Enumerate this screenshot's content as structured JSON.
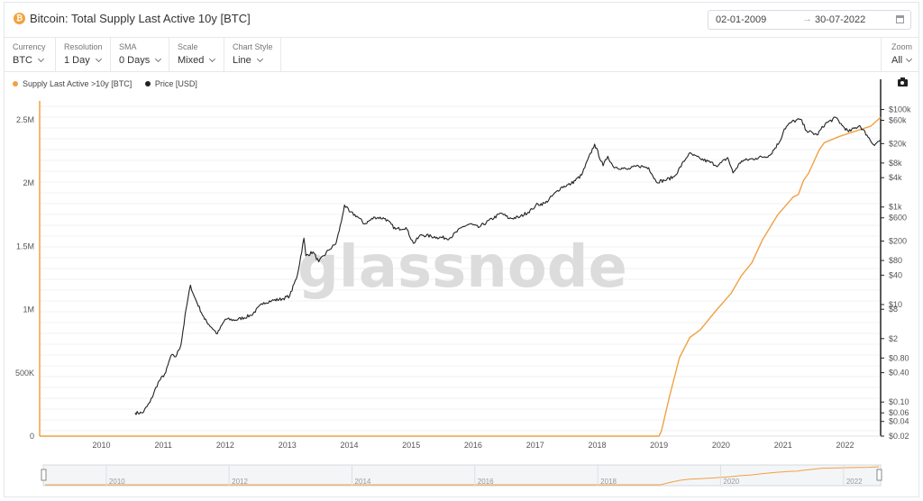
{
  "header": {
    "title": "Bitcoin: Total Supply Last Active 10y [BTC]",
    "date_from": "02-01-2009",
    "date_to": "30-07-2022"
  },
  "controls": [
    {
      "label": "Currency",
      "value": "BTC"
    },
    {
      "label": "Resolution",
      "value": "1 Day"
    },
    {
      "label": "SMA",
      "value": "0 Days"
    },
    {
      "label": "Scale",
      "value": "Mixed"
    },
    {
      "label": "Chart Style",
      "value": "Line"
    }
  ],
  "zoom": {
    "label": "Zoom",
    "value": "All"
  },
  "icons": {
    "coin": "bitcoin-icon",
    "calendar": "calendar-icon",
    "camera": "camera-icon"
  },
  "watermark": "glassnode",
  "colors": {
    "supply": "#f0a143",
    "price": "#222222"
  },
  "chart_data": {
    "type": "line",
    "x_range": [
      "2009-01-02",
      "2022-07-30"
    ],
    "x_ticks": [
      "2010",
      "2011",
      "2012",
      "2013",
      "2014",
      "2015",
      "2016",
      "2017",
      "2018",
      "2019",
      "2020",
      "2021",
      "2022"
    ],
    "y_left": {
      "range": [
        0,
        2650000
      ],
      "ticks": [
        0,
        500000,
        1000000,
        1500000,
        2000000,
        2500000
      ],
      "tick_labels": [
        "0",
        "500K",
        "1M",
        "1.5M",
        "2M",
        "2.5M"
      ]
    },
    "y_right": {
      "scale": "log",
      "range": [
        0.02,
        150000
      ],
      "ticks": [
        0.02,
        0.04,
        0.06,
        0.1,
        0.4,
        0.8,
        2,
        8,
        10,
        40,
        80,
        200,
        600,
        1000,
        4000,
        8000,
        20000,
        60000,
        100000
      ],
      "tick_labels": [
        "$0.02",
        "$0.04",
        "$0.06",
        "$0.10",
        "$0.40",
        "$0.80",
        "$2",
        "$8",
        "$10",
        "$40",
        "$80",
        "$200",
        "$600",
        "$1k",
        "$4k",
        "$8k",
        "$20k",
        "$60k",
        "$100k"
      ]
    },
    "legend_position": "top-left",
    "series": [
      {
        "name": "Supply Last Active >10y [BTC]",
        "axis": "left",
        "color": "#f0a143",
        "points": [
          [
            "2009-01-02",
            0
          ],
          [
            "2018-12-31",
            0
          ],
          [
            "2019-01-15",
            40000
          ],
          [
            "2019-03-01",
            300000
          ],
          [
            "2019-05-01",
            620000
          ],
          [
            "2019-07-01",
            780000
          ],
          [
            "2019-09-01",
            840000
          ],
          [
            "2019-12-01",
            990000
          ],
          [
            "2020-03-01",
            1130000
          ],
          [
            "2020-05-01",
            1270000
          ],
          [
            "2020-07-01",
            1370000
          ],
          [
            "2020-09-01",
            1550000
          ],
          [
            "2020-12-01",
            1750000
          ],
          [
            "2021-03-01",
            1890000
          ],
          [
            "2021-04-01",
            1910000
          ],
          [
            "2021-05-01",
            2020000
          ],
          [
            "2021-06-01",
            2080000
          ],
          [
            "2021-08-01",
            2260000
          ],
          [
            "2021-09-01",
            2320000
          ],
          [
            "2021-12-01",
            2370000
          ],
          [
            "2022-03-01",
            2410000
          ],
          [
            "2022-06-01",
            2450000
          ],
          [
            "2022-07-30",
            2520000
          ]
        ]
      },
      {
        "name": "Price [USD]",
        "axis": "right",
        "color": "#222222",
        "points": [
          [
            "2010-07-18",
            0.06
          ],
          [
            "2010-09-01",
            0.06
          ],
          [
            "2010-10-15",
            0.1
          ],
          [
            "2010-12-01",
            0.25
          ],
          [
            "2011-01-15",
            0.4
          ],
          [
            "2011-02-15",
            0.9
          ],
          [
            "2011-03-15",
            0.85
          ],
          [
            "2011-04-15",
            1.5
          ],
          [
            "2011-05-15",
            8
          ],
          [
            "2011-06-10",
            25
          ],
          [
            "2011-07-01",
            15
          ],
          [
            "2011-09-01",
            5
          ],
          [
            "2011-11-15",
            2.5
          ],
          [
            "2012-01-01",
            5
          ],
          [
            "2012-03-01",
            4.8
          ],
          [
            "2012-06-01",
            6
          ],
          [
            "2012-08-15",
            11
          ],
          [
            "2012-10-01",
            12
          ],
          [
            "2012-12-01",
            13
          ],
          [
            "2013-01-15",
            15
          ],
          [
            "2013-03-01",
            40
          ],
          [
            "2013-04-09",
            230
          ],
          [
            "2013-04-20",
            100
          ],
          [
            "2013-06-01",
            120
          ],
          [
            "2013-07-05",
            75
          ],
          [
            "2013-09-01",
            130
          ],
          [
            "2013-10-15",
            180
          ],
          [
            "2013-11-15",
            500
          ],
          [
            "2013-12-04",
            1100
          ],
          [
            "2014-01-01",
            800
          ],
          [
            "2014-02-15",
            650
          ],
          [
            "2014-04-01",
            450
          ],
          [
            "2014-06-01",
            620
          ],
          [
            "2014-08-01",
            580
          ],
          [
            "2014-10-01",
            350
          ],
          [
            "2014-12-01",
            380
          ],
          [
            "2015-01-14",
            180
          ],
          [
            "2015-03-01",
            270
          ],
          [
            "2015-06-01",
            240
          ],
          [
            "2015-08-15",
            230
          ],
          [
            "2015-11-04",
            400
          ],
          [
            "2015-12-15",
            450
          ],
          [
            "2016-02-01",
            380
          ],
          [
            "2016-06-15",
            750
          ],
          [
            "2016-08-01",
            580
          ],
          [
            "2016-10-01",
            620
          ],
          [
            "2016-12-15",
            900
          ],
          [
            "2017-01-05",
            1100
          ],
          [
            "2017-03-01",
            1200
          ],
          [
            "2017-06-01",
            2500
          ],
          [
            "2017-08-01",
            3000
          ],
          [
            "2017-10-01",
            4500
          ],
          [
            "2017-12-17",
            19500
          ],
          [
            "2018-02-05",
            7000
          ],
          [
            "2018-03-05",
            11000
          ],
          [
            "2018-04-05",
            6800
          ],
          [
            "2018-06-29",
            5900
          ],
          [
            "2018-09-01",
            7000
          ],
          [
            "2018-11-01",
            6400
          ],
          [
            "2018-12-15",
            3300
          ],
          [
            "2019-02-01",
            3500
          ],
          [
            "2019-04-01",
            4200
          ],
          [
            "2019-06-26",
            12500
          ],
          [
            "2019-09-01",
            9800
          ],
          [
            "2019-12-15",
            7100
          ],
          [
            "2020-02-10",
            10300
          ],
          [
            "2020-03-12",
            5000
          ],
          [
            "2020-05-01",
            8800
          ],
          [
            "2020-07-25",
            10000
          ],
          [
            "2020-10-15",
            11500
          ],
          [
            "2020-12-15",
            23000
          ],
          [
            "2021-01-08",
            40000
          ],
          [
            "2021-02-21",
            56000
          ],
          [
            "2021-04-14",
            63000
          ],
          [
            "2021-05-19",
            37000
          ],
          [
            "2021-07-20",
            30000
          ],
          [
            "2021-09-06",
            51000
          ],
          [
            "2021-11-10",
            68000
          ],
          [
            "2021-12-15",
            47000
          ],
          [
            "2022-01-22",
            35000
          ],
          [
            "2022-03-28",
            47000
          ],
          [
            "2022-05-10",
            30000
          ],
          [
            "2022-06-18",
            19000
          ],
          [
            "2022-07-30",
            23500
          ]
        ]
      }
    ]
  }
}
